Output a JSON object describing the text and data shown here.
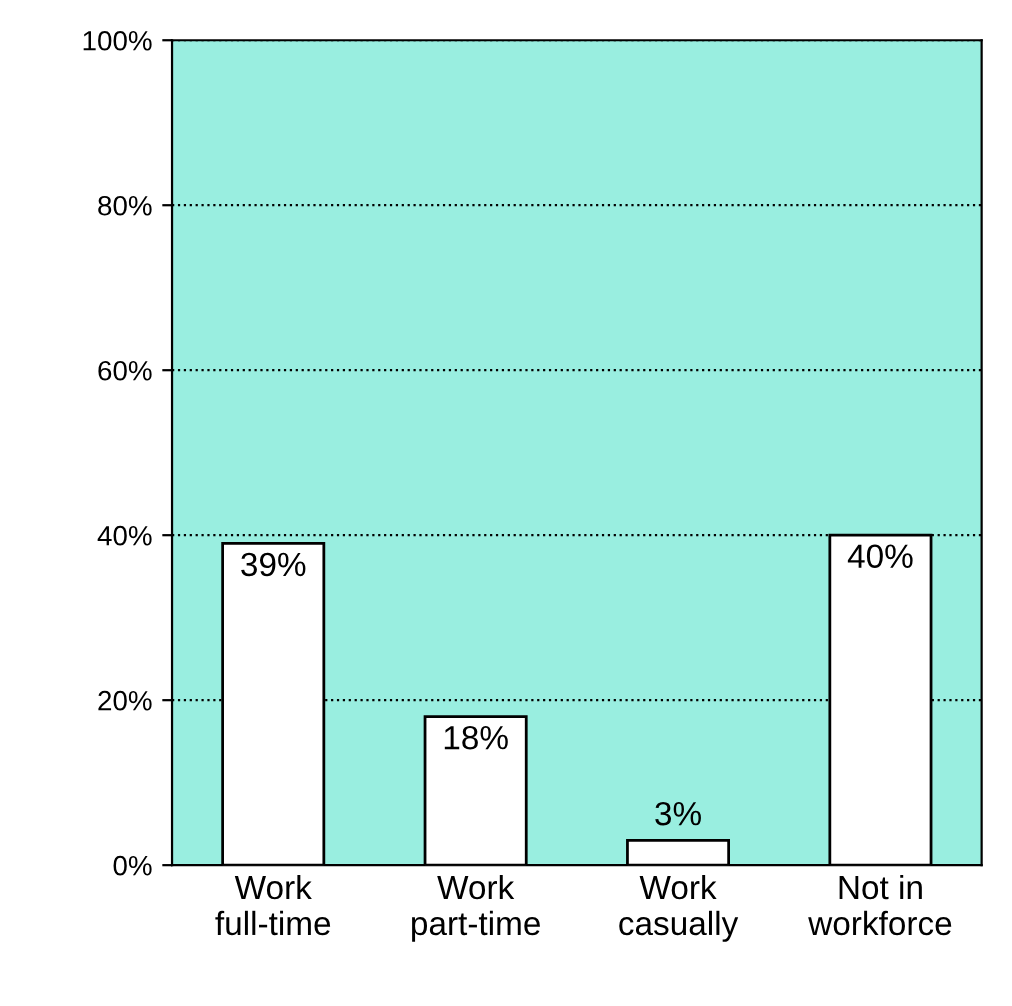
{
  "chart_data": {
    "type": "bar",
    "categories": [
      "Work\nfull-time",
      "Work\npart-time",
      "Work\ncasually",
      "Not in\nworkforce"
    ],
    "values": [
      39,
      18,
      3,
      40
    ],
    "color": "#ffffff",
    "value_labels": [
      "39%",
      "18%",
      "3%",
      "40%"
    ],
    "ylim": [
      0,
      100
    ],
    "yticks": [
      {
        "value": 0,
        "label": "0%"
      },
      {
        "value": 20,
        "label": "20%"
      },
      {
        "value": 40,
        "label": "40%"
      },
      {
        "value": 60,
        "label": "60%"
      },
      {
        "value": 80,
        "label": "80%"
      },
      {
        "value": 100,
        "label": "100%"
      }
    ],
    "grid": "y"
  }
}
